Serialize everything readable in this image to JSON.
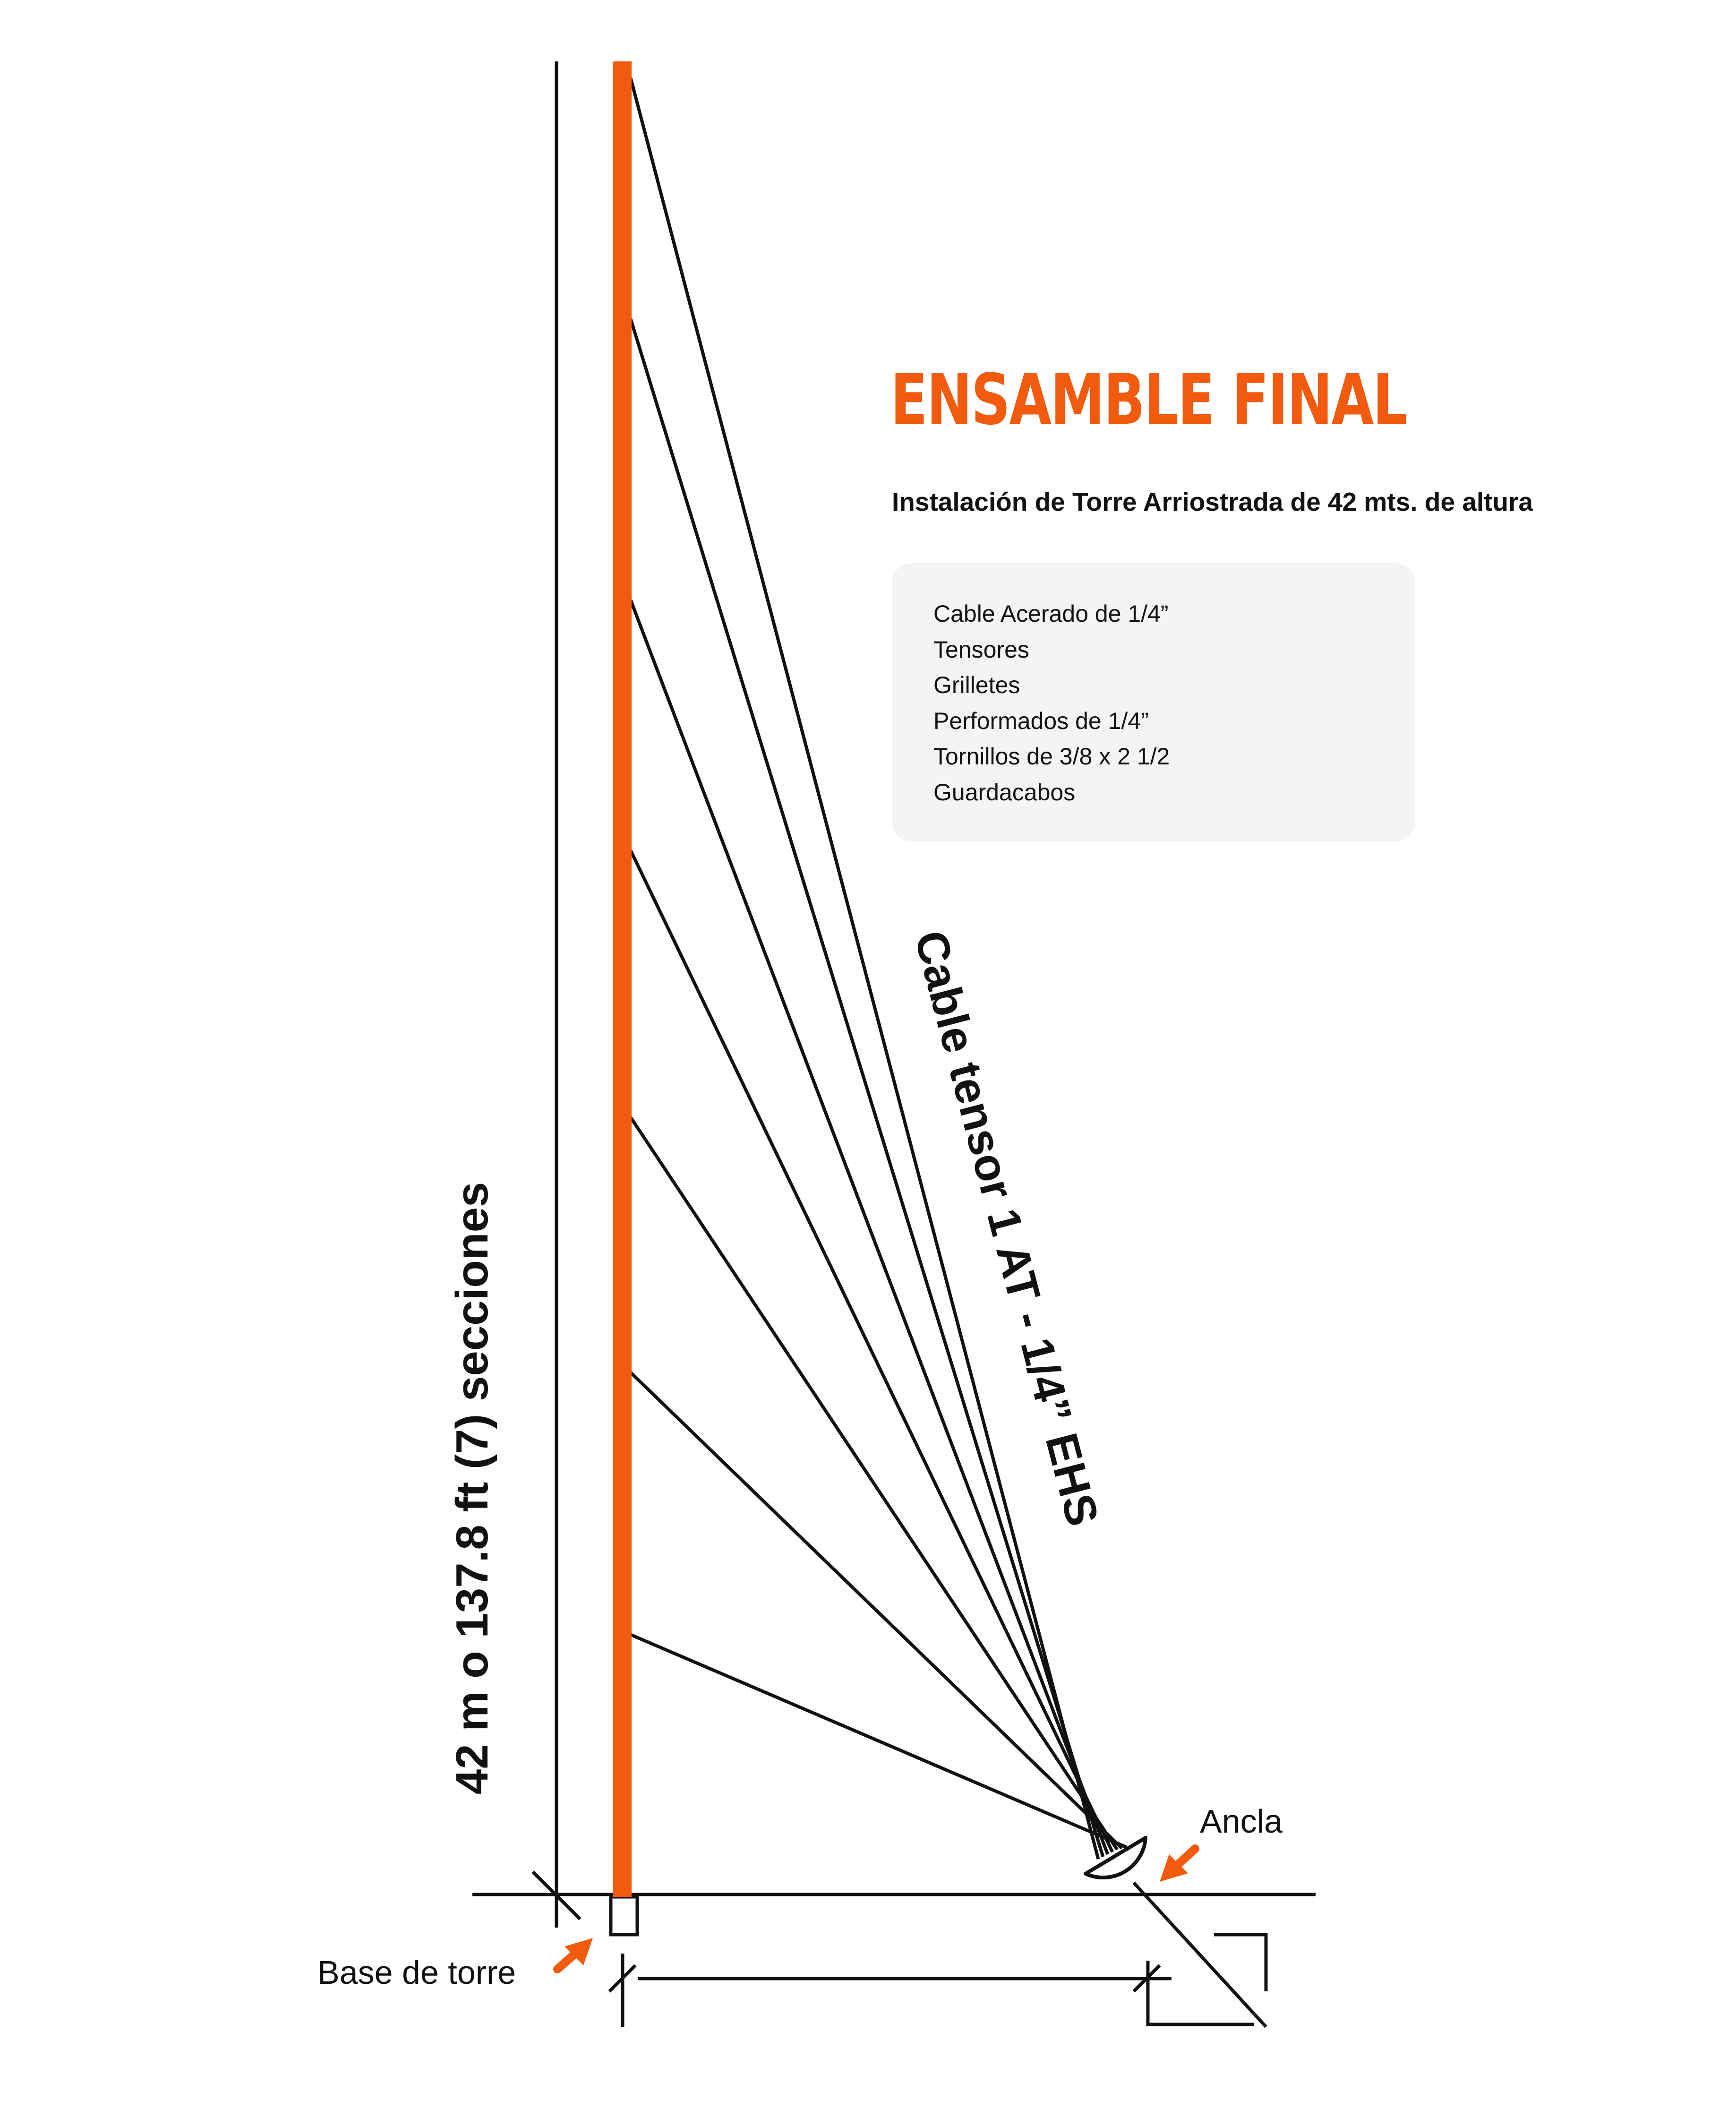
{
  "title": "ENSAMBLE FINAL",
  "subtitle": "Instalación de Torre Arriostrada de 42 mts. de altura",
  "materials": [
    "Cable Acerado de 1/4”",
    "Tensores",
    "Grilletes",
    "Performados de 1/4”",
    "Tornillos de 3/8 x 2 1/2",
    "Guardacabos"
  ],
  "height_label": "42 m o 137.8 ft (7) secciones",
  "cable_label": "Cable tensor 1 AT - 1/4” EHS",
  "anchor_label": "Ancla",
  "base_label": "Base de torre",
  "colors": {
    "tower": "#f25a0d",
    "arrow": "#f25a0d",
    "line": "#111111",
    "box": "#f4f4f4"
  },
  "icons": {
    "anchor": "anchor-semicircle-icon",
    "arrow": "orange-arrow-icon"
  }
}
